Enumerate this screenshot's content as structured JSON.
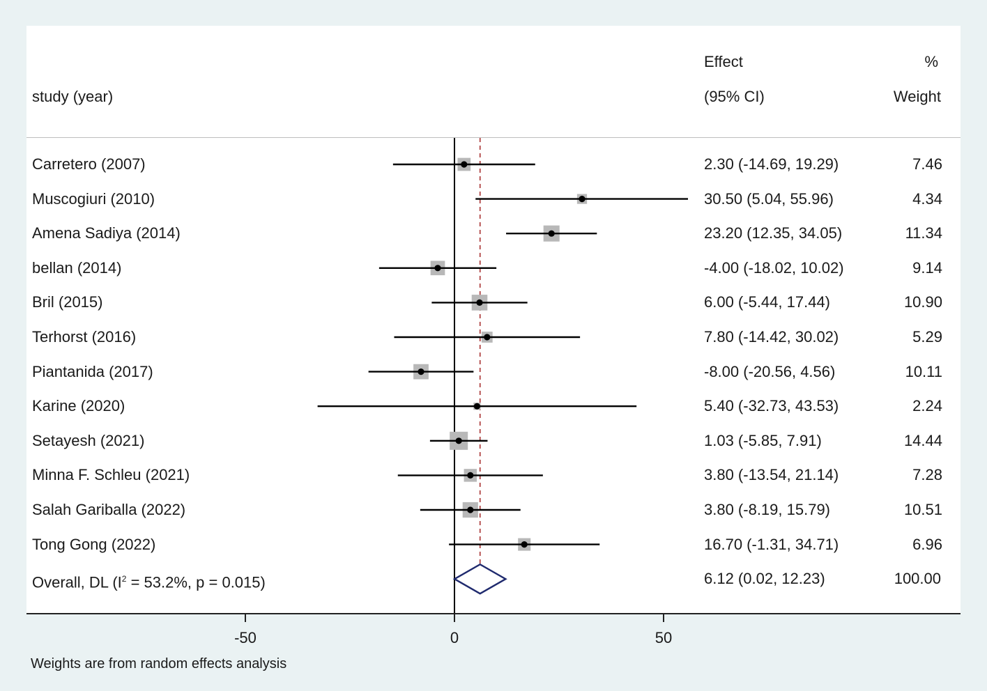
{
  "header": {
    "study_label": "study (year)",
    "effect_label": "Effect",
    "ci_label": "(95% CI)",
    "pct_label": "%",
    "weight_label": "Weight"
  },
  "footnote": "Weights are from random effects analysis",
  "colors": {
    "box": "#b8b8b8",
    "line": "#000000",
    "null_line": "#000000",
    "overall_line": "#a83232",
    "diamond": "#1f2a6e"
  },
  "chart_data": {
    "type": "forest",
    "xlim": [
      -100,
      100
    ],
    "xticks": [
      -50,
      0,
      50
    ],
    "xtick_labels": [
      "-50",
      "0",
      "50"
    ],
    "null_value": 0,
    "studies": [
      {
        "label": "Carretero (2007)",
        "effect": 2.3,
        "lower": -14.69,
        "upper": 19.29,
        "weight": 7.46,
        "ci_text": "2.30 (-14.69, 19.29)",
        "weight_text": "7.46"
      },
      {
        "label": "Muscogiuri (2010)",
        "effect": 30.5,
        "lower": 5.04,
        "upper": 55.96,
        "weight": 4.34,
        "ci_text": "30.50 (5.04, 55.96)",
        "weight_text": "4.34"
      },
      {
        "label": "Amena Sadiya (2014)",
        "effect": 23.2,
        "lower": 12.35,
        "upper": 34.05,
        "weight": 11.34,
        "ci_text": "23.20 (12.35, 34.05)",
        "weight_text": "11.34"
      },
      {
        "label": "bellan (2014)",
        "effect": -4.0,
        "lower": -18.02,
        "upper": 10.02,
        "weight": 9.14,
        "ci_text": "-4.00 (-18.02, 10.02)",
        "weight_text": "9.14"
      },
      {
        "label": "Bril (2015)",
        "effect": 6.0,
        "lower": -5.44,
        "upper": 17.44,
        "weight": 10.9,
        "ci_text": "6.00 (-5.44, 17.44)",
        "weight_text": "10.90"
      },
      {
        "label": "Terhorst (2016)",
        "effect": 7.8,
        "lower": -14.42,
        "upper": 30.02,
        "weight": 5.29,
        "ci_text": "7.80 (-14.42, 30.02)",
        "weight_text": "5.29"
      },
      {
        "label": "Piantanida (2017)",
        "effect": -8.0,
        "lower": -20.56,
        "upper": 4.56,
        "weight": 10.11,
        "ci_text": "-8.00 (-20.56, 4.56)",
        "weight_text": "10.11"
      },
      {
        "label": "Karine (2020)",
        "effect": 5.4,
        "lower": -32.73,
        "upper": 43.53,
        "weight": 2.24,
        "ci_text": "5.40 (-32.73, 43.53)",
        "weight_text": "2.24"
      },
      {
        "label": "Setayesh (2021)",
        "effect": 1.03,
        "lower": -5.85,
        "upper": 7.91,
        "weight": 14.44,
        "ci_text": "1.03 (-5.85, 7.91)",
        "weight_text": "14.44"
      },
      {
        "label": "Minna F. Schleu (2021)",
        "effect": 3.8,
        "lower": -13.54,
        "upper": 21.14,
        "weight": 7.28,
        "ci_text": "3.80 (-13.54, 21.14)",
        "weight_text": "7.28"
      },
      {
        "label": "Salah Gariballa (2022)",
        "effect": 3.8,
        "lower": -8.19,
        "upper": 15.79,
        "weight": 10.51,
        "ci_text": "3.80 (-8.19, 15.79)",
        "weight_text": "10.51"
      },
      {
        "label": "Tong Gong (2022)",
        "effect": 16.7,
        "lower": -1.31,
        "upper": 34.71,
        "weight": 6.96,
        "ci_text": "16.70 (-1.31, 34.71)",
        "weight_text": "6.96"
      }
    ],
    "overall": {
      "label_prefix": "Overall, DL (I",
      "label_sup": "2",
      "label_suffix": " = 53.2%, p = 0.015)",
      "effect": 6.12,
      "lower": 0.02,
      "upper": 12.23,
      "ci_text": "6.12 (0.02, 12.23)",
      "weight_text": "100.00"
    }
  }
}
